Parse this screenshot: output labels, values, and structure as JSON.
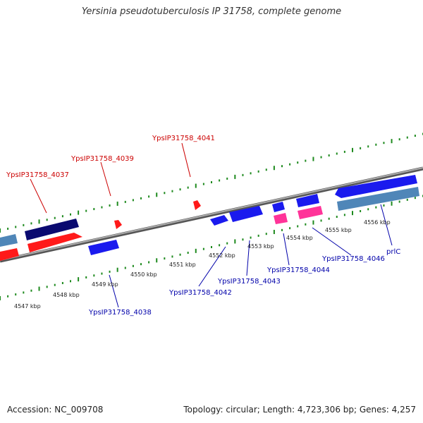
{
  "title": "Yersinia pseudotuberculosis IP 31758, complete genome",
  "footer": {
    "accession": "Accession: NC_009708",
    "topology": "Topology: circular; Length: 4,723,306 bp; Genes: 4,257"
  },
  "colors": {
    "backbone": "#8a8a8a",
    "tick": "#1e8a1e",
    "forward_label": "#cc0000",
    "reverse_label": "#0000aa",
    "red": "#ff1a1a",
    "blue": "#1a1aee",
    "navy": "#0a0a70",
    "steel": "#4f86b8",
    "pink": "#ff3399"
  },
  "scale_labels": [
    "4547 kbp",
    "4548 kbp",
    "4549 kbp",
    "4550 kbp",
    "4551 kbp",
    "4552 kbp",
    "4553 kbp",
    "4554 kbp",
    "4555 kbp",
    "4556 kbp"
  ],
  "forward_gene_labels": [
    "YpsIP31758_4037",
    "YpsIP31758_4039",
    "YpsIP31758_4041"
  ],
  "reverse_gene_labels": [
    "YpsIP31758_4038",
    "YpsIP31758_4042",
    "YpsIP31758_4043",
    "YpsIP31758_4044",
    "YpsIP31758_4046",
    "prlC"
  ]
}
